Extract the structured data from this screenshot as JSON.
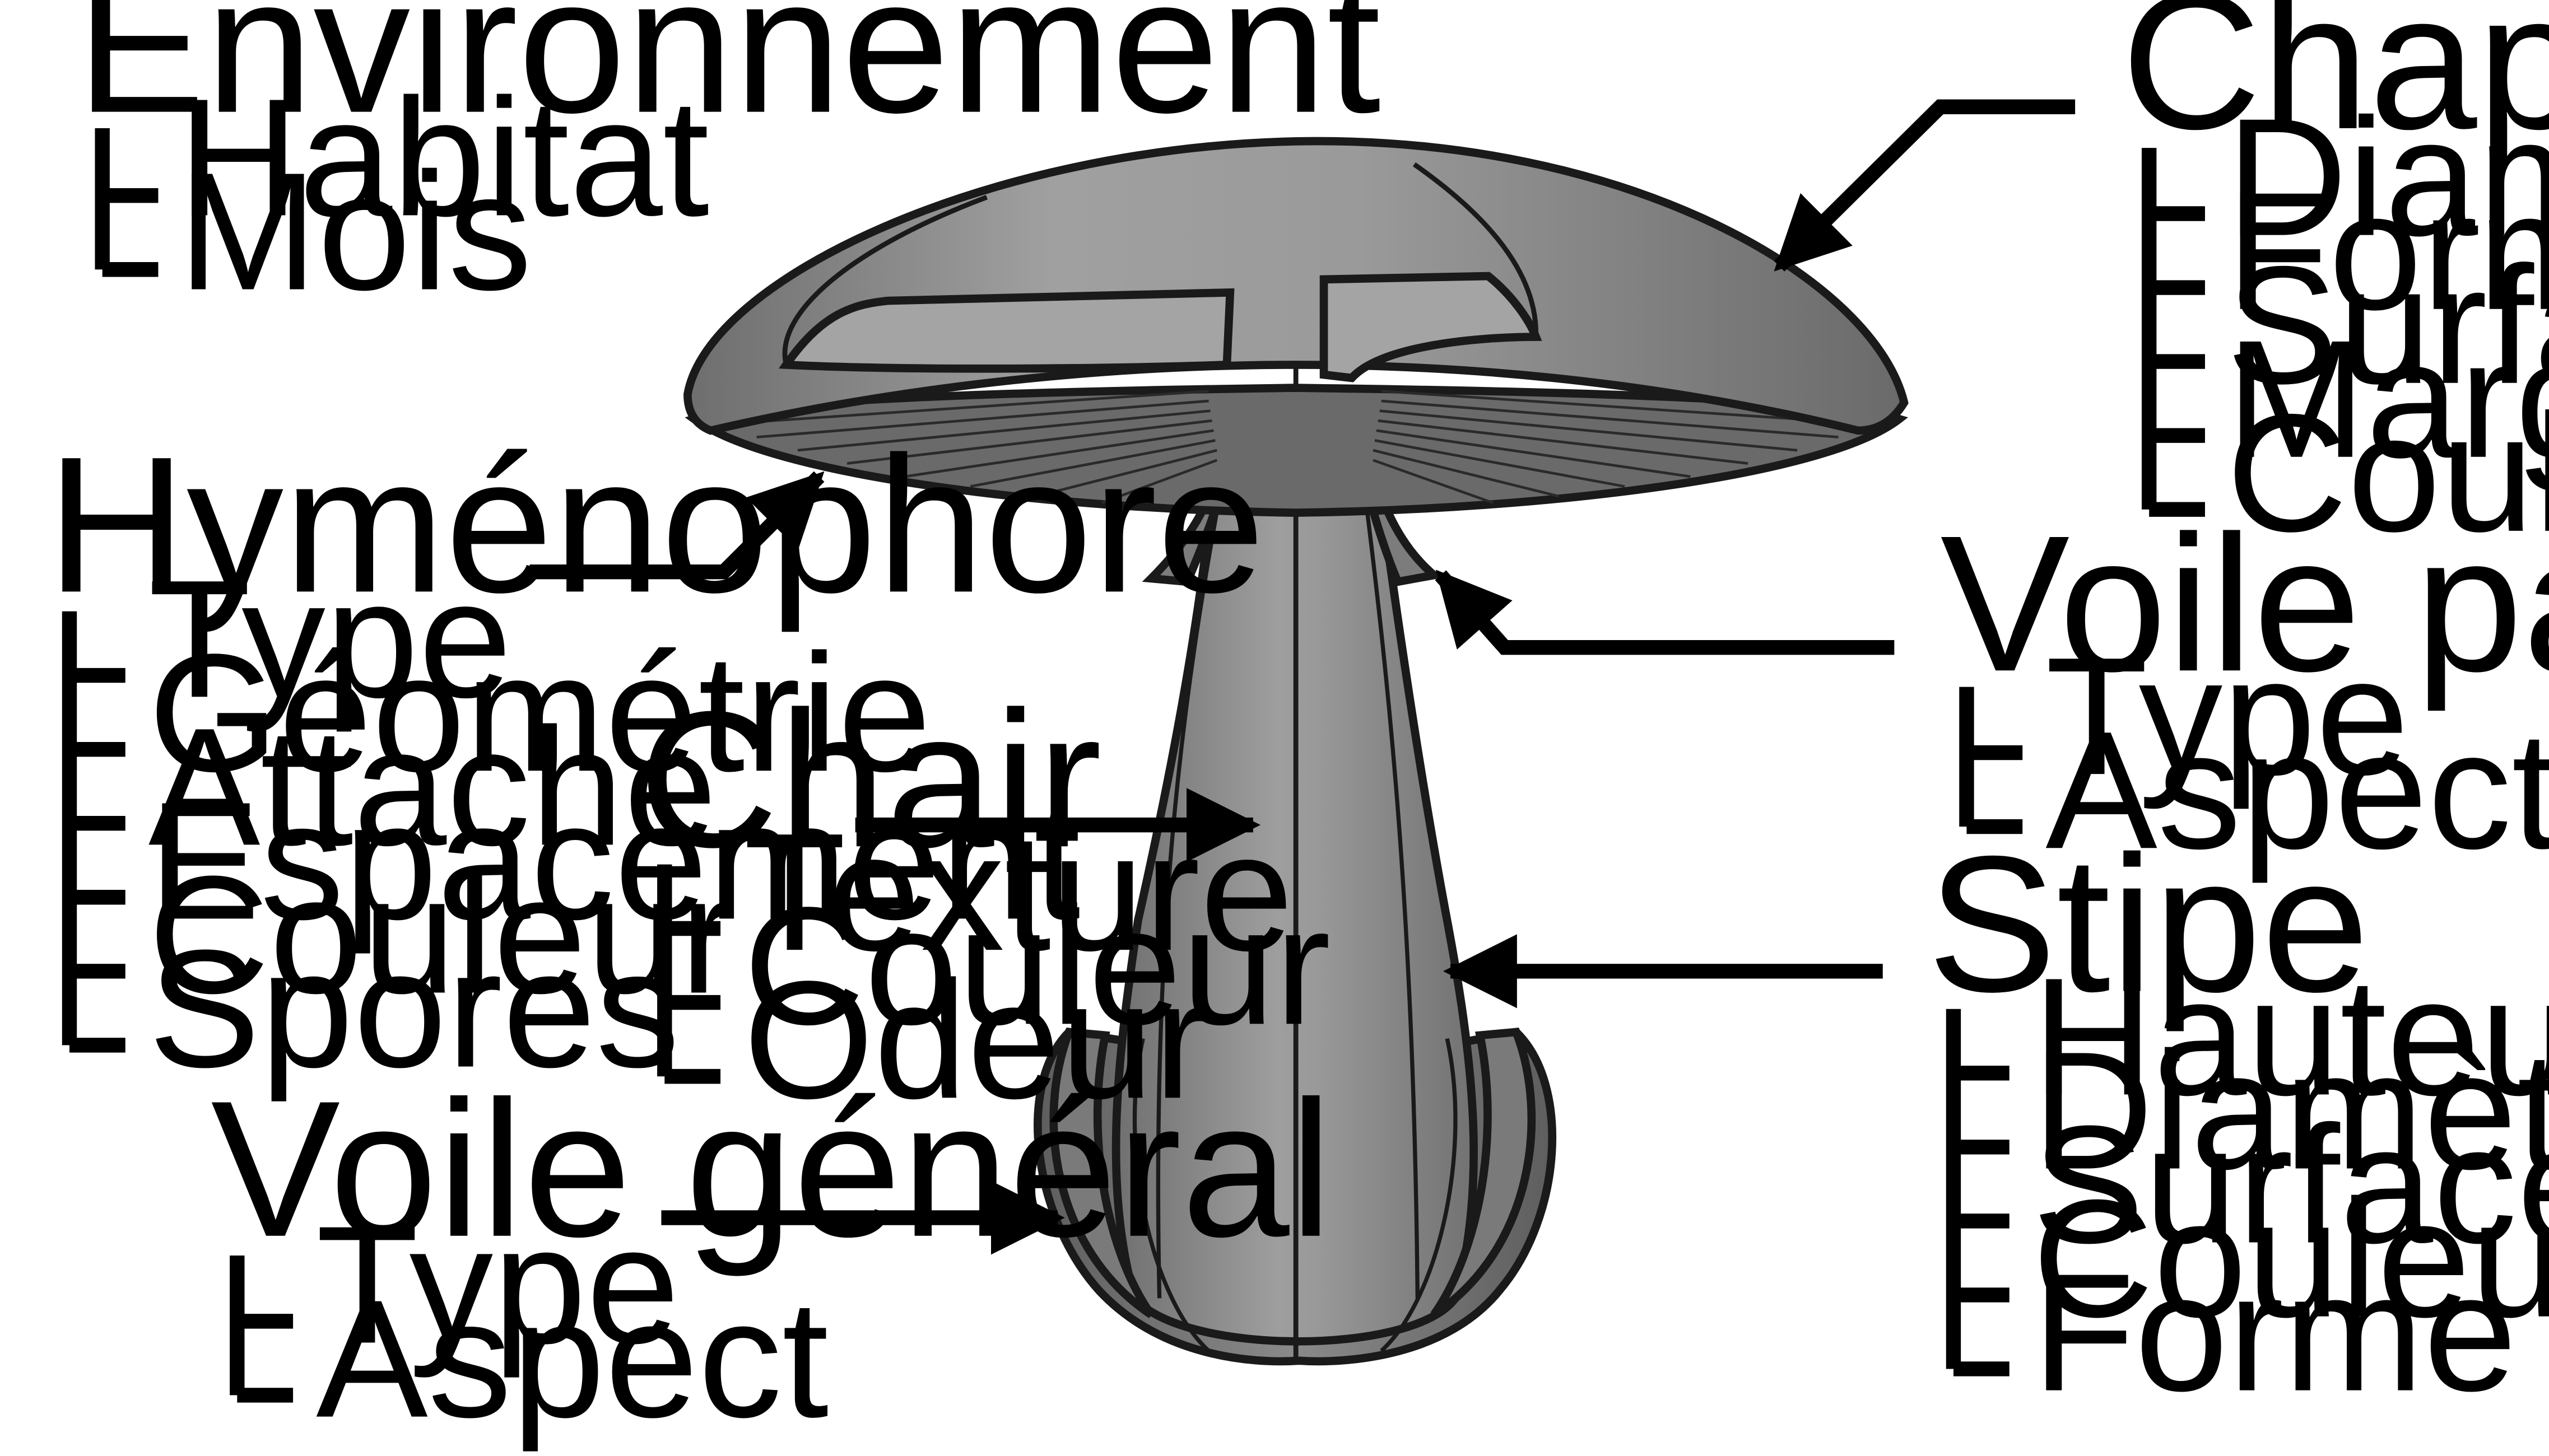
{
  "colors": {
    "fill_light": "#a8a8a8",
    "fill_mid": "#8c8c8c",
    "fill_dark": "#555555",
    "line": "#000000"
  },
  "labels": {
    "environnement": {
      "title": "Environnement",
      "items": [
        "Habitat",
        "Mois"
      ]
    },
    "chapeau": {
      "title": "Chapeau",
      "items": [
        "Diamètre",
        "Forme",
        "Surface",
        "Marge",
        "Couleur"
      ]
    },
    "hymenophore": {
      "title": "Hyménophore",
      "items": [
        "Type",
        "Géométrie",
        "Attache",
        "Espacement",
        "Couleur",
        "Spores"
      ]
    },
    "voile_partiel": {
      "title": "Voile partiel",
      "items": [
        "Type",
        "Aspect"
      ]
    },
    "chair": {
      "title": "Chair",
      "items": [
        "Texture",
        "Couleur",
        "Odeur"
      ]
    },
    "stipe": {
      "title": "Stipe",
      "items": [
        "Hauteur",
        "Diamètre",
        "Surface",
        "Couleur",
        "Forme"
      ]
    },
    "voile_general": {
      "title": "Voile général",
      "items": [
        "Type",
        "Aspect"
      ]
    }
  }
}
